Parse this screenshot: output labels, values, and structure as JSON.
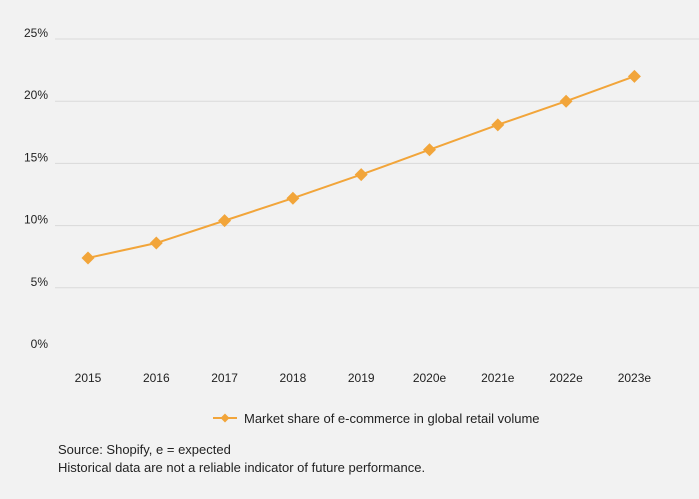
{
  "colors": {
    "line": "#f2a53a",
    "grid": "#d9d9d9",
    "background": "#f2f2f2"
  },
  "chart_data": {
    "type": "line",
    "categories": [
      "2015",
      "2016",
      "2017",
      "2018",
      "2019",
      "2020e",
      "2021e",
      "2022e",
      "2023e"
    ],
    "series": [
      {
        "name": "Market share of e-commerce in global retail volume",
        "values": [
          7.4,
          8.6,
          10.4,
          12.2,
          14.1,
          16.1,
          18.1,
          20.0,
          22.0
        ]
      }
    ],
    "y_ticks": [
      0,
      5,
      10,
      15,
      20,
      25
    ],
    "y_tick_labels": [
      "0%",
      "5%",
      "10%",
      "15%",
      "20%",
      "25%"
    ],
    "ylim": [
      0,
      25
    ],
    "grid": true,
    "legend_position": "bottom-center",
    "marker": "diamond"
  },
  "footer": {
    "source": "Source: Shopify, e = expected",
    "disclaimer": "Historical data are not a reliable indicator of future performance."
  }
}
